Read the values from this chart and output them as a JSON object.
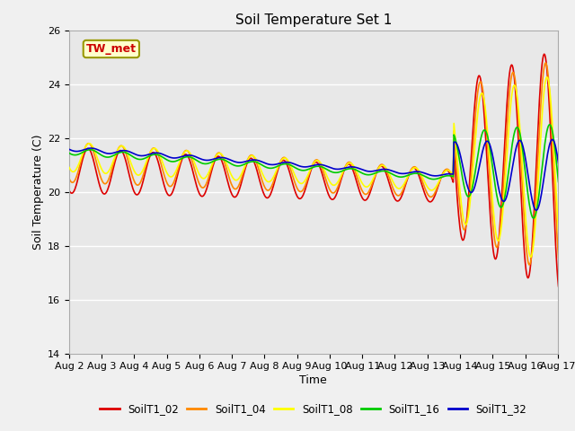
{
  "title": "Soil Temperature Set 1",
  "xlabel": "Time",
  "ylabel": "Soil Temperature (C)",
  "ylim": [
    14,
    26
  ],
  "xlim": [
    0,
    360
  ],
  "fig_bg": "#f0f0f0",
  "plot_bg": "#e8e8e8",
  "annotation_text": "TW_met",
  "annotation_color": "#cc0000",
  "annotation_bg": "#ffffcc",
  "annotation_border": "#999900",
  "series_colors": {
    "SoilT1_02": "#dd0000",
    "SoilT1_04": "#ff8800",
    "SoilT1_08": "#ffff00",
    "SoilT1_16": "#00cc00",
    "SoilT1_32": "#0000cc"
  },
  "tick_labels": [
    "Aug 2",
    "Aug 3",
    "Aug 4",
    "Aug 5",
    "Aug 6",
    "Aug 7",
    "Aug 8",
    "Aug 9",
    "Aug 10",
    "Aug 11",
    "Aug 12",
    "Aug 13",
    "Aug 14",
    "Aug 15",
    "Aug 16",
    "Aug 17"
  ],
  "tick_positions": [
    0,
    24,
    48,
    72,
    96,
    120,
    144,
    168,
    192,
    216,
    240,
    264,
    288,
    312,
    336,
    360
  ],
  "yticks": [
    14,
    16,
    18,
    20,
    22,
    24,
    26
  ]
}
